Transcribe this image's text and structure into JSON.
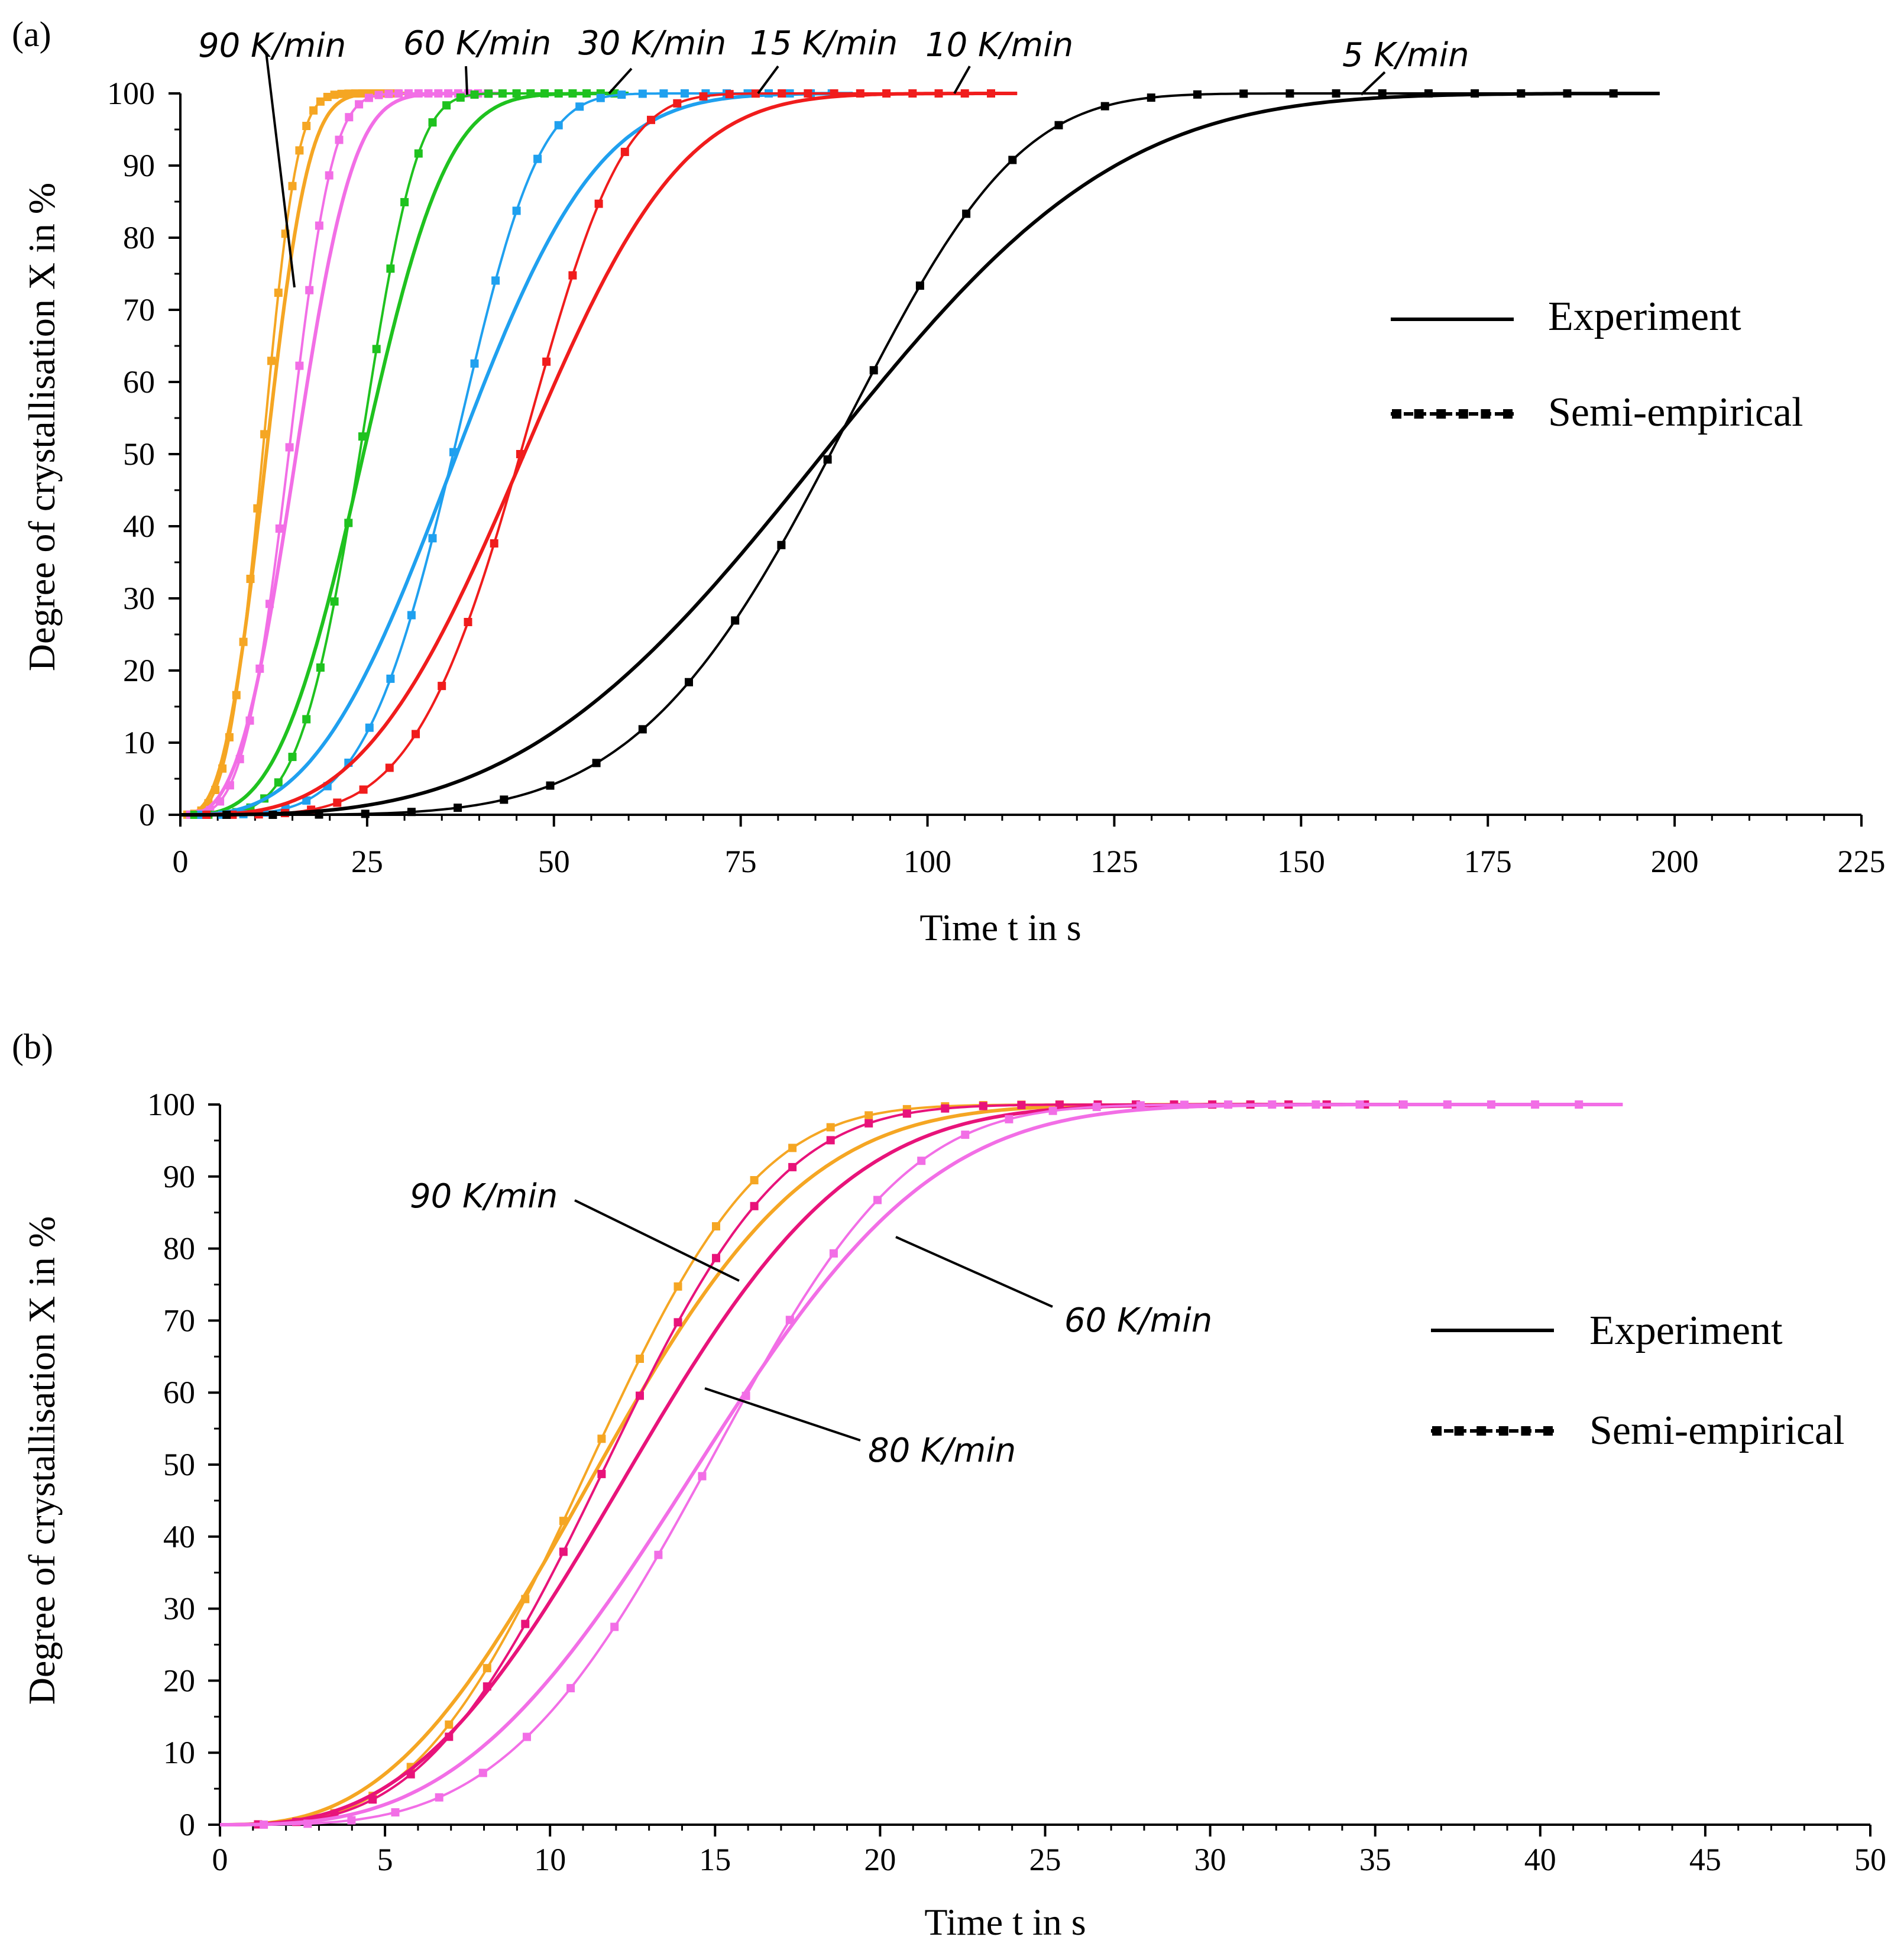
{
  "figure": {
    "panels": [
      {
        "id": "a",
        "panel_label": "(a)",
        "xlabel": "Time t in s",
        "ylabel": "Degree of crystallisation X in %",
        "legend": {
          "experiment_label": "Experiment",
          "semi_empirical_label": "Semi-empirical"
        }
      },
      {
        "id": "b",
        "panel_label": "(b)",
        "xlabel": "Time t in s",
        "ylabel": "Degree of crystallisation X in %",
        "legend": {
          "experiment_label": "Experiment",
          "semi_empirical_label": "Semi-empirical"
        }
      }
    ]
  },
  "chart_data": [
    {
      "type": "line",
      "panel": "(a)",
      "xlabel": "Time t in s",
      "ylabel": "Degree of crystallisation X in %",
      "xlim": [
        0,
        225
      ],
      "ylim": [
        0,
        100
      ],
      "xticks": [
        0,
        25,
        50,
        75,
        100,
        125,
        150,
        175,
        200,
        225
      ],
      "yticks": [
        0,
        10,
        20,
        30,
        40,
        50,
        60,
        70,
        80,
        90,
        100
      ],
      "legend_position": "right",
      "series": [
        {
          "name": "90 K/min",
          "color": "#f5a623",
          "experiment": {
            "t_half": 11.5,
            "n": 3.0,
            "t_end": 30
          },
          "semi_empirical": {
            "t_half": 11.0,
            "n": 3.5,
            "t_end": 30
          }
        },
        {
          "name": "60 K/min",
          "color": "#f26ee6",
          "experiment": {
            "t_half": 15.5,
            "n": 3.0,
            "t_end": 43
          },
          "semi_empirical": {
            "t_half": 14.5,
            "n": 3.6,
            "t_end": 42.5
          }
        },
        {
          "name": "30 K/min",
          "color": "#1fc21f",
          "experiment": {
            "t_half": 24.5,
            "n": 3.2,
            "t_end": 60
          },
          "semi_empirical": {
            "t_half": 24.0,
            "n": 4.5,
            "t_end": 60
          }
        },
        {
          "name": "15 K/min",
          "color": "#1fa0ef",
          "experiment": {
            "t_half": 37.0,
            "n": 2.9,
            "t_end": 90
          },
          "semi_empirical": {
            "t_half": 36.5,
            "n": 4.6,
            "t_end": 90
          }
        },
        {
          "name": "10 K/min",
          "color": "#f01c1c",
          "experiment": {
            "t_half": 46.0,
            "n": 3.2,
            "t_end": 112
          },
          "semi_empirical": {
            "t_half": 45.5,
            "n": 4.8,
            "t_end": 112
          }
        },
        {
          "name": "5 K/min",
          "color": "#000000",
          "experiment": {
            "t_half": 86.0,
            "n": 3.2,
            "t_end": 198
          },
          "semi_empirical": {
            "t_half": 87.0,
            "n": 5.0,
            "t_end": 198
          }
        }
      ],
      "annotations": [
        "90 K/min",
        "60 K/min",
        "30 K/min",
        "15 K/min",
        "10 K/min",
        "5 K/min"
      ]
    },
    {
      "type": "line",
      "panel": "(b)",
      "xlabel": "Time t in s",
      "ylabel": "Degree of crystallisation X in %",
      "xlim": [
        0,
        50
      ],
      "ylim": [
        0,
        100
      ],
      "xticks": [
        0,
        5,
        10,
        15,
        20,
        25,
        30,
        35,
        40,
        45,
        50
      ],
      "yticks": [
        0,
        10,
        20,
        30,
        40,
        50,
        60,
        70,
        80,
        90,
        100
      ],
      "legend_position": "right",
      "series": [
        {
          "name": "90 K/min",
          "color": "#f5a623",
          "experiment": {
            "t_half": 11.5,
            "n": 2.7,
            "t_end": 37
          },
          "semi_empirical": {
            "t_half": 11.2,
            "n": 3.2,
            "t_end": 37
          }
        },
        {
          "name": "80 K/min",
          "color": "#e8137a",
          "experiment": {
            "t_half": 12.5,
            "n": 2.8,
            "t_end": 37
          },
          "semi_empirical": {
            "t_half": 11.7,
            "n": 3.2,
            "t_end": 37
          }
        },
        {
          "name": "60 K/min",
          "color": "#f26ee6",
          "experiment": {
            "t_half": 14.5,
            "n": 3.0,
            "t_end": 42.5
          },
          "semi_empirical": {
            "t_half": 14.8,
            "n": 3.6,
            "t_end": 42.5
          }
        }
      ],
      "annotations": [
        "90 K/min",
        "80 K/min",
        "60 K/min"
      ]
    }
  ]
}
